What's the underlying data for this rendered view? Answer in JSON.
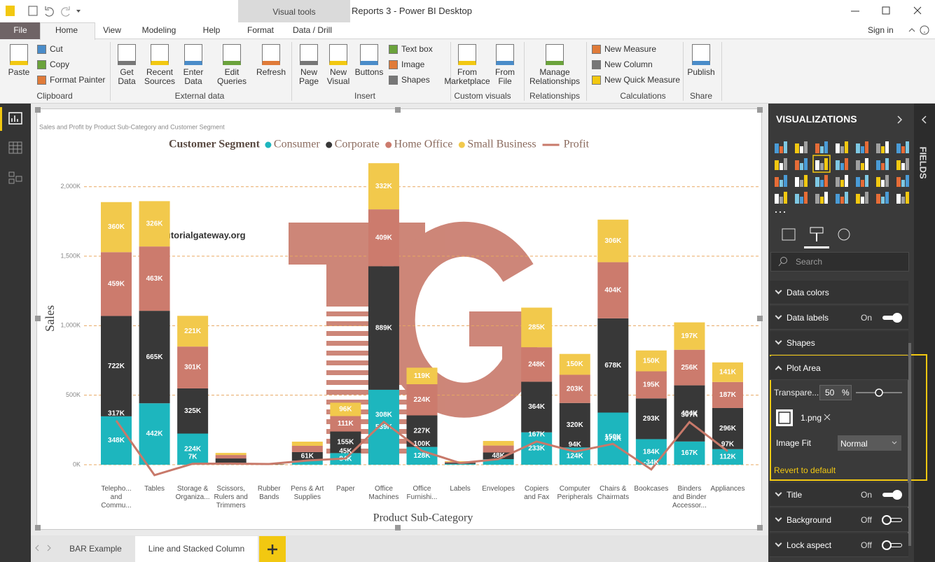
{
  "window": {
    "title": "Reports 3 - Power BI Desktop",
    "context_tab": "Visual tools",
    "sign_in": "Sign in"
  },
  "tabs": [
    "File",
    "Home",
    "View",
    "Modeling",
    "Help",
    "Format",
    "Data / Drill"
  ],
  "ribbon": [
    {
      "group": "Clipboard",
      "items": [
        "Paste",
        "Cut",
        "Copy",
        "Format Painter"
      ]
    },
    {
      "group": "External data",
      "items": [
        "Get\nData",
        "Recent\nSources",
        "Enter\nData",
        "Edit\nQueries",
        "Refresh"
      ]
    },
    {
      "group": "Insert",
      "items": [
        "New\nPage",
        "New\nVisual",
        "Buttons",
        "Text box",
        "Image",
        "Shapes"
      ]
    },
    {
      "group": "Custom visuals",
      "items": [
        "From\nMarketplace",
        "From\nFile"
      ]
    },
    {
      "group": "Relationships",
      "items": [
        "Manage\nRelationships"
      ]
    },
    {
      "group": "Calculations",
      "items": [
        "New Measure",
        "New Column",
        "New Quick Measure"
      ]
    },
    {
      "group": "Share",
      "items": [
        "Publish"
      ]
    }
  ],
  "chart_data": {
    "type": "bar",
    "stacked": true,
    "title": "Sales and Profit by Product Sub-Category and Customer Segment",
    "legend_title": "Customer Segment",
    "legend": "top",
    "x_label": "Product Sub-Category",
    "y_label": "Sales",
    "categories": [
      "Telepho...\nand\nCommu...",
      "Tables",
      "Storage &\nOrganiza...",
      "Scissors,\nRulers and\nTrimmers",
      "Rubber\nBands",
      "Pens & Art\nSupplies",
      "Paper",
      "Office\nMachines",
      "Office\nFurnishi...",
      "Labels",
      "Envelopes",
      "Copiers\nand Fax",
      "Computer\nPeripherals",
      "Chairs &\nChairmats",
      "Bookcases",
      "Binders\nand Binder\nAccessor...",
      "Appliances"
    ],
    "series": [
      {
        "name": "Consumer",
        "color": "#1DB6BE",
        "values": [
          348000,
          442000,
          224000,
          15000,
          1000,
          30000,
          84000,
          539000,
          128000,
          6000,
          40000,
          233000,
          124000,
          375000,
          184000,
          167000,
          112000
        ],
        "value_labels": [
          "348K",
          "442K",
          "224K",
          null,
          null,
          null,
          "84K",
          "539K",
          "128K",
          null,
          null,
          "233K",
          "124K",
          "375K",
          "184K",
          "167K",
          "112K"
        ]
      },
      {
        "name": "Corporate",
        "color": "#383838",
        "values": [
          722000,
          665000,
          325000,
          30000,
          2000,
          61000,
          155000,
          889000,
          227000,
          8000,
          48000,
          364000,
          320000,
          678000,
          293000,
          404000,
          296000
        ],
        "value_labels": [
          "722K",
          "665K",
          "325K",
          null,
          null,
          "61K",
          "155K",
          "889K",
          "227K",
          null,
          "48K",
          "364K",
          "320K",
          "678K",
          "293K",
          "404K",
          "296K"
        ]
      },
      {
        "name": "Home Office",
        "color": "#CC7B6D",
        "values": [
          459000,
          463000,
          301000,
          25000,
          1000,
          45000,
          111000,
          409000,
          224000,
          6000,
          50000,
          248000,
          203000,
          404000,
          195000,
          256000,
          187000
        ],
        "value_labels": [
          "459K",
          "463K",
          "301K",
          null,
          null,
          null,
          "111K",
          "409K",
          "224K",
          null,
          null,
          "248K",
          "203K",
          "404K",
          "195K",
          "256K",
          "187K"
        ]
      },
      {
        "name": "Small Business",
        "color": "#F2C94C",
        "values": [
          360000,
          326000,
          221000,
          15000,
          1000,
          30000,
          96000,
          332000,
          119000,
          5000,
          33000,
          285000,
          150000,
          306000,
          150000,
          197000,
          141000
        ],
        "value_labels": [
          "360K",
          "326K",
          "221K",
          null,
          null,
          null,
          "96K",
          "332K",
          "119K",
          null,
          null,
          "285K",
          "150K",
          "306K",
          "150K",
          "197K",
          "141K"
        ]
      },
      {
        "name": "Profit",
        "type": "line",
        "color": "#C8796A",
        "values": [
          317000,
          -75000,
          7000,
          8000,
          5000,
          30000,
          45000,
          308000,
          100000,
          12000,
          40000,
          167000,
          94000,
          150000,
          -34000,
          307000,
          97000
        ],
        "value_labels": [
          "317K",
          null,
          "7K",
          null,
          null,
          null,
          "45K",
          "308K",
          "100K",
          null,
          null,
          "167K",
          "94K",
          "150K",
          "-34K",
          "307K",
          "97K"
        ]
      }
    ],
    "ylim": [
      0,
      2200000
    ],
    "yticks": [
      {
        "value": 0,
        "label": "0K"
      },
      {
        "value": 500000,
        "label": "500K"
      },
      {
        "value": 1000000,
        "label": "1,000K"
      },
      {
        "value": 1500000,
        "label": "1,500K"
      },
      {
        "value": 2000000,
        "label": "2,000K"
      }
    ],
    "grid": true
  },
  "watermark": "©tutorialgateway.org",
  "visualizations": {
    "title": "VISUALIZATIONS",
    "fields_tab": "FIELDS",
    "search_placeholder": "Search",
    "sections": [
      {
        "label": "Data colors"
      },
      {
        "label": "Data labels",
        "state": "On"
      },
      {
        "label": "Shapes"
      },
      {
        "label": "Plot Area"
      },
      {
        "label": "Title",
        "state": "On"
      },
      {
        "label": "Background",
        "state": "Off"
      },
      {
        "label": "Lock aspect",
        "state": "Off"
      }
    ],
    "plot_area": {
      "transparency_label": "Transpare...",
      "transparency": 50,
      "percent": "%",
      "image": "1.png",
      "image_fit_label": "Image Fit",
      "image_fit": "Normal",
      "revert": "Revert to default"
    }
  },
  "pages": [
    "BAR Example",
    "Line and Stacked Column"
  ]
}
